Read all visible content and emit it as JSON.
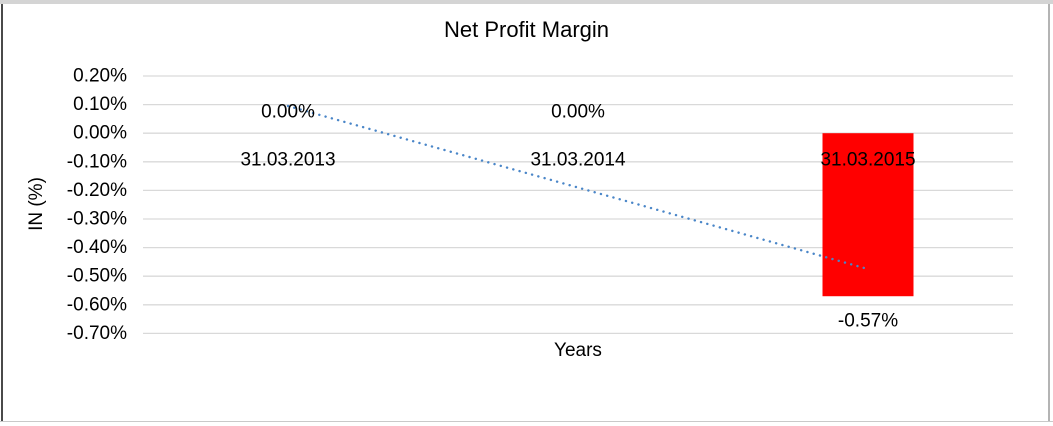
{
  "chart_data": {
    "type": "bar",
    "title": "Net Profit Margin",
    "xlabel": "Years",
    "ylabel": "IN (%)",
    "categories": [
      "31.03.2013",
      "31.03.2014",
      "31.03.2015"
    ],
    "series": [
      {
        "name": "Net Profit Margin",
        "type": "column",
        "color": "#FF0000",
        "values": [
          0.0,
          0.0,
          -0.57
        ],
        "data_labels": [
          "0.00%",
          "0.00%",
          "-0.57%"
        ]
      }
    ],
    "trendline": {
      "type": "linear",
      "style": "dotted",
      "color": "#4A86C8",
      "points": [
        {
          "category": "31.03.2013",
          "y": 0.095
        },
        {
          "category": "31.03.2015",
          "y": -0.475
        }
      ]
    },
    "y_axis": {
      "min": -0.7,
      "max": 0.2,
      "tick_step": 0.1,
      "unit": "%",
      "tick_labels": [
        "0.20%",
        "0.10%",
        "0.00%",
        "-0.10%",
        "-0.20%",
        "-0.30%",
        "-0.40%",
        "-0.50%",
        "-0.60%",
        "-0.70%"
      ]
    },
    "grid": true,
    "legend": "none",
    "colors": {
      "gridline": "#D9D9D9",
      "text": "#000000"
    }
  }
}
